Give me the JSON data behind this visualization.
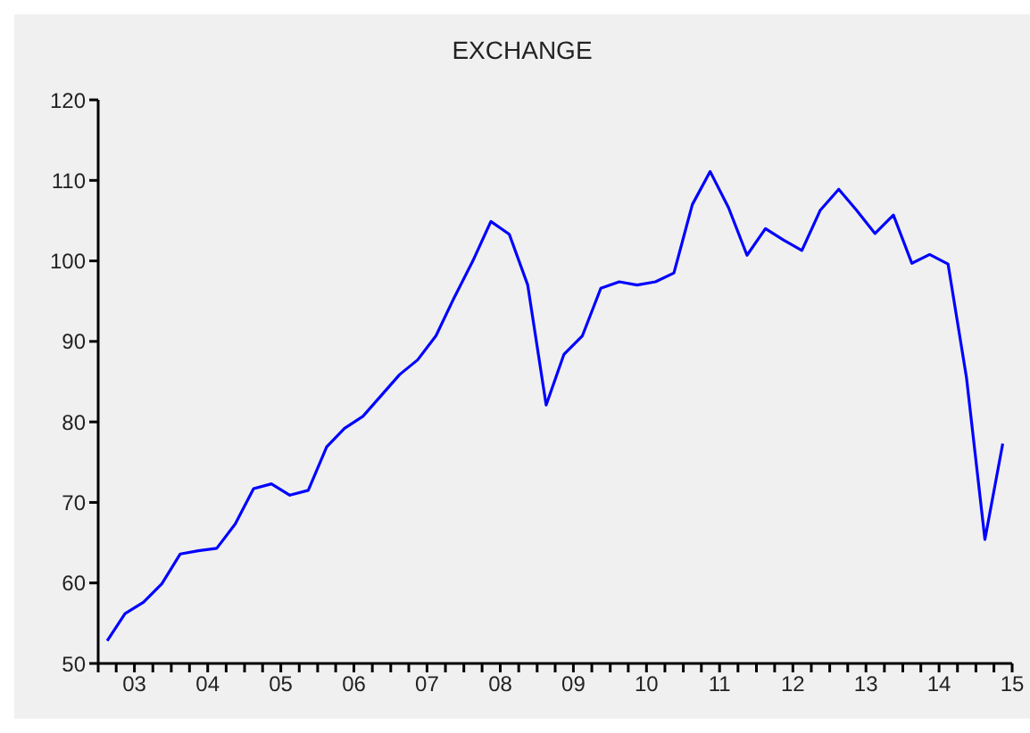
{
  "chart_data": {
    "type": "line",
    "title": "EXCHANGE",
    "x": [
      "2003-02-15",
      "2003-05-15",
      "2003-08-15",
      "2003-11-15",
      "2004-02-15",
      "2004-05-15",
      "2004-08-15",
      "2004-11-15",
      "2005-02-15",
      "2005-05-15",
      "2005-08-15",
      "2005-11-15",
      "2006-02-15",
      "2006-05-15",
      "2006-08-15",
      "2006-11-15",
      "2007-02-15",
      "2007-05-15",
      "2007-08-15",
      "2007-11-15",
      "2008-02-15",
      "2008-05-15",
      "2008-08-15",
      "2008-11-15",
      "2009-02-15",
      "2009-05-15",
      "2009-08-15",
      "2009-11-15",
      "2010-02-15",
      "2010-05-15",
      "2010-08-15",
      "2010-11-15",
      "2011-02-15",
      "2011-05-15",
      "2011-08-15",
      "2011-11-15",
      "2012-02-15",
      "2012-05-15",
      "2012-08-15",
      "2012-11-15",
      "2013-02-15",
      "2013-05-15",
      "2013-08-15",
      "2013-11-15",
      "2014-02-15",
      "2014-05-15",
      "2014-08-15",
      "2014-11-15",
      "2015-02-15",
      "2015-05-15"
    ],
    "series": [
      {
        "color": "#0000ff",
        "values": [
          52.8,
          56.2,
          57.6,
          59.9,
          63.6,
          64.0,
          64.3,
          67.3,
          71.7,
          72.3,
          70.9,
          71.5,
          76.9,
          79.2,
          80.7,
          83.3,
          85.9,
          87.7,
          90.7,
          95.5,
          100.0,
          104.9,
          103.3,
          97.0,
          82.1,
          88.4,
          90.7,
          96.6,
          97.4,
          97.0,
          97.4,
          98.5,
          107.0,
          111.1,
          106.6,
          100.7,
          104.0,
          102.6,
          101.3,
          106.3,
          108.9,
          106.3,
          103.4,
          105.7,
          99.7,
          100.8,
          99.6,
          85.5,
          65.4,
          77.3
        ]
      }
    ],
    "xlim": [
      "2003-01-01",
      "2015-07-01"
    ],
    "xticks": [
      {
        "value": "2003-01-01",
        "label": null
      },
      {
        "value": "2003-04-01",
        "label": null
      },
      {
        "value": "2003-07-01",
        "label": "03"
      },
      {
        "value": "2003-10-01",
        "label": null
      },
      {
        "value": "2004-01-01",
        "label": null
      },
      {
        "value": "2004-04-01",
        "label": null
      },
      {
        "value": "2004-07-01",
        "label": "04"
      },
      {
        "value": "2004-10-01",
        "label": null
      },
      {
        "value": "2005-01-01",
        "label": null
      },
      {
        "value": "2005-04-01",
        "label": null
      },
      {
        "value": "2005-07-01",
        "label": "05"
      },
      {
        "value": "2005-10-01",
        "label": null
      },
      {
        "value": "2006-01-01",
        "label": null
      },
      {
        "value": "2006-04-01",
        "label": null
      },
      {
        "value": "2006-07-01",
        "label": "06"
      },
      {
        "value": "2006-10-01",
        "label": null
      },
      {
        "value": "2007-01-01",
        "label": null
      },
      {
        "value": "2007-04-01",
        "label": null
      },
      {
        "value": "2007-07-01",
        "label": "07"
      },
      {
        "value": "2007-10-01",
        "label": null
      },
      {
        "value": "2008-01-01",
        "label": null
      },
      {
        "value": "2008-04-01",
        "label": null
      },
      {
        "value": "2008-07-01",
        "label": "08"
      },
      {
        "value": "2008-10-01",
        "label": null
      },
      {
        "value": "2009-01-01",
        "label": null
      },
      {
        "value": "2009-04-01",
        "label": null
      },
      {
        "value": "2009-07-01",
        "label": "09"
      },
      {
        "value": "2009-10-01",
        "label": null
      },
      {
        "value": "2010-01-01",
        "label": null
      },
      {
        "value": "2010-04-01",
        "label": null
      },
      {
        "value": "2010-07-01",
        "label": "10"
      },
      {
        "value": "2010-10-01",
        "label": null
      },
      {
        "value": "2011-01-01",
        "label": null
      },
      {
        "value": "2011-04-01",
        "label": null
      },
      {
        "value": "2011-07-01",
        "label": "11"
      },
      {
        "value": "2011-10-01",
        "label": null
      },
      {
        "value": "2012-01-01",
        "label": null
      },
      {
        "value": "2012-04-01",
        "label": null
      },
      {
        "value": "2012-07-01",
        "label": "12"
      },
      {
        "value": "2012-10-01",
        "label": null
      },
      {
        "value": "2013-01-01",
        "label": null
      },
      {
        "value": "2013-04-01",
        "label": null
      },
      {
        "value": "2013-07-01",
        "label": "13"
      },
      {
        "value": "2013-10-01",
        "label": null
      },
      {
        "value": "2014-01-01",
        "label": null
      },
      {
        "value": "2014-04-01",
        "label": null
      },
      {
        "value": "2014-07-01",
        "label": "14"
      },
      {
        "value": "2014-10-01",
        "label": null
      },
      {
        "value": "2015-01-01",
        "label": null
      },
      {
        "value": "2015-04-01",
        "label": null
      },
      {
        "value": "2015-07-01",
        "label": "15"
      }
    ],
    "ylim": [
      50,
      120
    ],
    "yticks": [
      50,
      60,
      70,
      80,
      90,
      100,
      110,
      120
    ],
    "grid": false,
    "legend": false,
    "marker": "none",
    "line_style": "solid"
  }
}
